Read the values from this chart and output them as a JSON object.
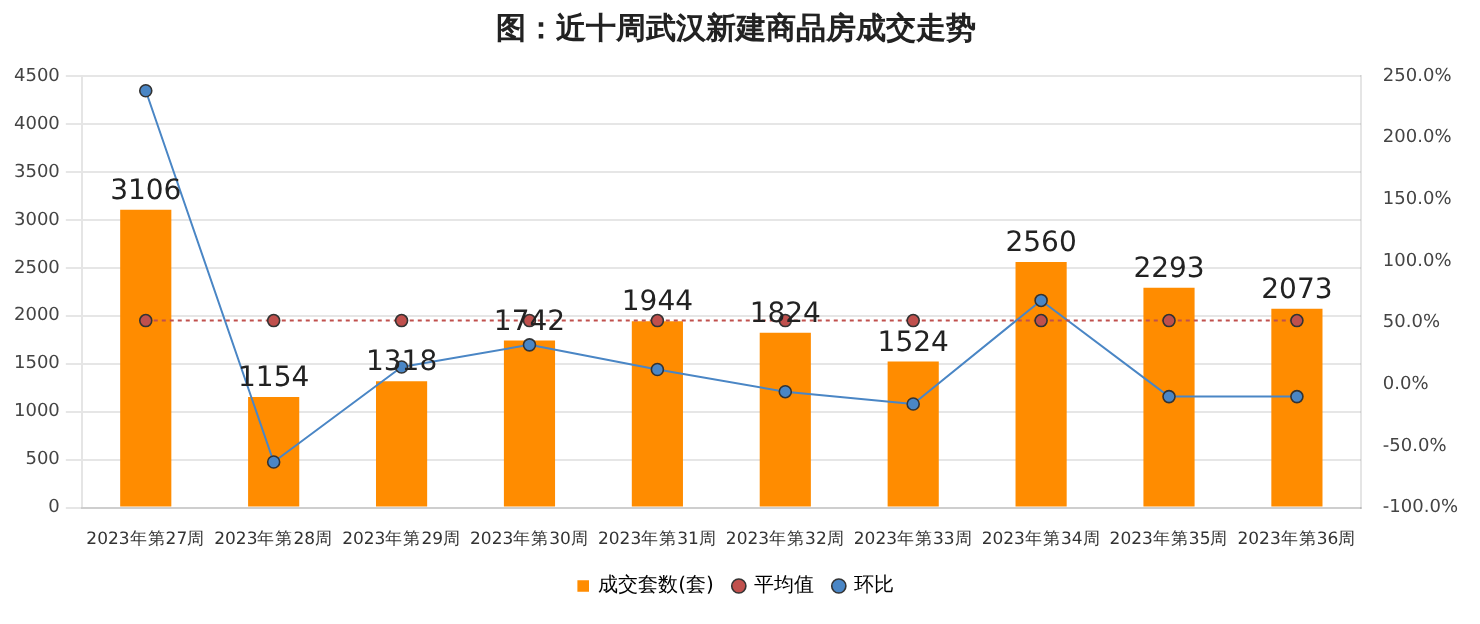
{
  "chart_data": {
    "type": "bar",
    "title": "图：近十周武汉新建商品房成交走势",
    "categories": [
      "2023年第27周",
      "2023年第28周",
      "2023年第29周",
      "2023年第30周",
      "2023年第31周",
      "2023年第32周",
      "2023年第33周",
      "2023年第34周",
      "2023年第35周",
      "2023年第36周"
    ],
    "series": [
      {
        "name": "成交套数(套)",
        "color": "#ff8c00",
        "values": [
          3106,
          1154,
          1318,
          1742,
          1944,
          1824,
          1524,
          2560,
          2293,
          2073
        ],
        "value_labels": [
          "3106",
          "1154",
          "1318",
          "1742",
          "1944",
          "1824",
          "1524",
          "2560",
          "2293",
          "2073"
        ]
      },
      {
        "name": "平均值",
        "type": "line",
        "color": "#c0504d",
        "line_style": "dotted",
        "marker": "circle",
        "values": [
          1950,
          1950,
          1950,
          1950,
          1950,
          1950,
          1950,
          1950,
          1950,
          1950
        ]
      },
      {
        "name": "环比",
        "type": "line",
        "color": "#4a86c5",
        "line_style": "solid",
        "marker": "circle",
        "axis": "y2",
        "values": [
          238,
          -63,
          14,
          32,
          12,
          -6,
          -16,
          68,
          -10,
          -10
        ]
      }
    ],
    "ylim": [
      0,
      4500
    ],
    "yticks": [
      0,
      500,
      1000,
      1500,
      2000,
      2500,
      3000,
      3500,
      4000,
      4500
    ],
    "y2lim": [
      -100,
      250
    ],
    "y2ticks": [
      {
        "value": -100,
        "label": "-100.0%"
      },
      {
        "value": -50,
        "label": "-50.0%"
      },
      {
        "value": 0,
        "label": "0.0%"
      },
      {
        "value": 50,
        "label": "50.0%"
      },
      {
        "value": 100,
        "label": "100.0%"
      },
      {
        "value": 150,
        "label": "150.0%"
      },
      {
        "value": 200,
        "label": "200.0%"
      },
      {
        "value": 250,
        "label": "250.0%"
      }
    ],
    "grid": "y",
    "legend": "bottom"
  }
}
